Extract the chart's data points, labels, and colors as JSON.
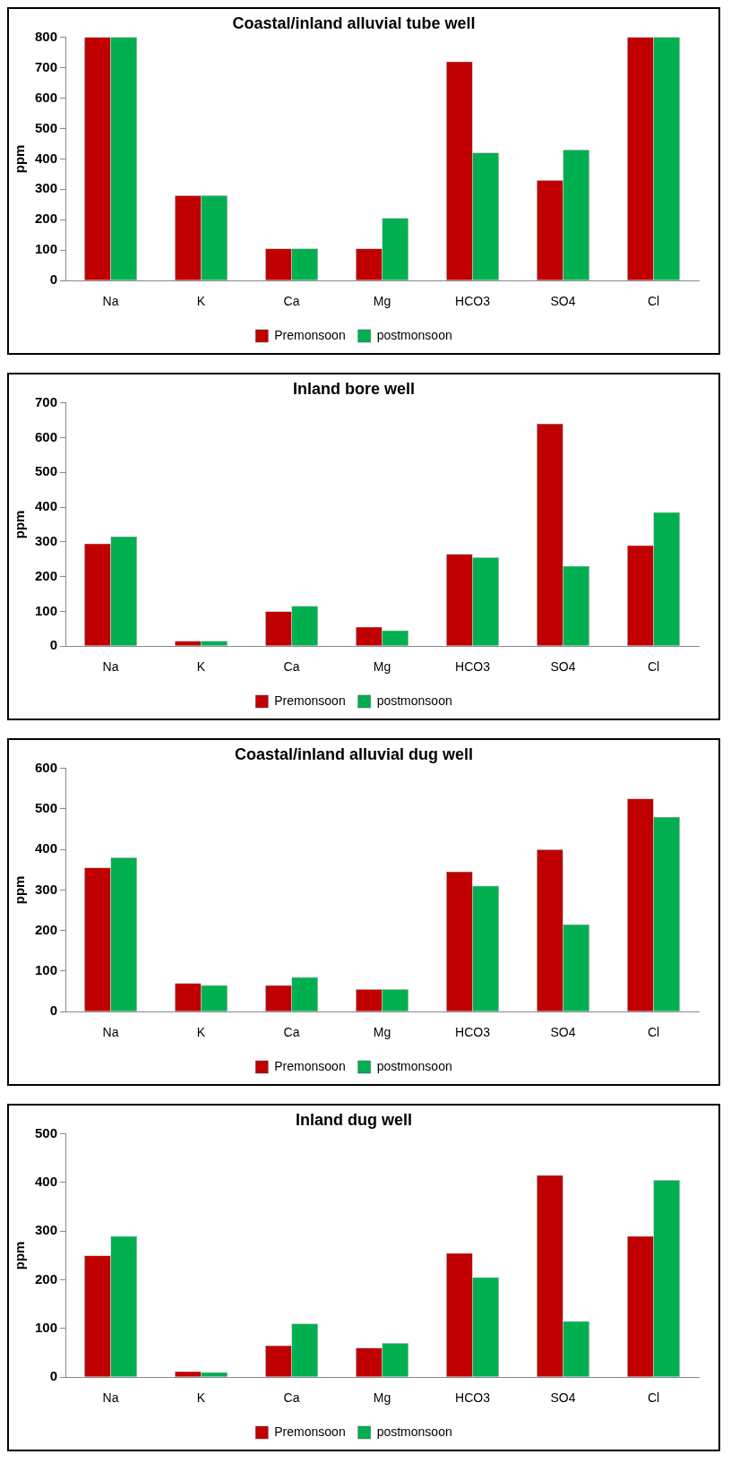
{
  "chart_data": [
    {
      "type": "bar",
      "title": "Coastal/inland alluvial tube well",
      "ylabel": "ppm",
      "categories": [
        "Na",
        "K",
        "Ca",
        "Mg",
        "HCO3",
        "SO4",
        "Cl"
      ],
      "ylim": [
        0,
        800
      ],
      "yticks": [
        0,
        100,
        200,
        300,
        400,
        500,
        600,
        700,
        800
      ],
      "legend": "bottom",
      "grid": false,
      "series": [
        {
          "name": "Premonsoon",
          "color": "#c00000",
          "values": [
            800,
            280,
            105,
            105,
            720,
            330,
            800
          ]
        },
        {
          "name": "postmonsoon",
          "color": "#00b050",
          "values": [
            800,
            280,
            105,
            205,
            420,
            430,
            800
          ]
        }
      ]
    },
    {
      "type": "bar",
      "title": "Inland bore well",
      "ylabel": "ppm",
      "categories": [
        "Na",
        "K",
        "Ca",
        "Mg",
        "HCO3",
        "SO4",
        "Cl"
      ],
      "ylim": [
        0,
        700
      ],
      "yticks": [
        0,
        100,
        200,
        300,
        400,
        500,
        600,
        700
      ],
      "legend": "bottom",
      "grid": false,
      "series": [
        {
          "name": "Premonsoon",
          "color": "#c00000",
          "values": [
            295,
            15,
            100,
            55,
            265,
            640,
            290
          ]
        },
        {
          "name": "postmonsoon",
          "color": "#00b050",
          "values": [
            315,
            15,
            115,
            45,
            255,
            230,
            385
          ]
        }
      ]
    },
    {
      "type": "bar",
      "title": "Coastal/inland alluvial dug well",
      "ylabel": "ppm",
      "categories": [
        "Na",
        "K",
        "Ca",
        "Mg",
        "HCO3",
        "SO4",
        "Cl"
      ],
      "ylim": [
        0,
        600
      ],
      "yticks": [
        0,
        100,
        200,
        300,
        400,
        500,
        600
      ],
      "legend": "bottom",
      "grid": false,
      "series": [
        {
          "name": "Premonsoon",
          "color": "#c00000",
          "values": [
            355,
            70,
            65,
            55,
            345,
            400,
            525
          ]
        },
        {
          "name": "postmonsoon",
          "color": "#00b050",
          "values": [
            380,
            65,
            85,
            55,
            310,
            215,
            480
          ]
        }
      ]
    },
    {
      "type": "bar",
      "title": "Inland dug well",
      "ylabel": "ppm",
      "categories": [
        "Na",
        "K",
        "Ca",
        "Mg",
        "HCO3",
        "SO4",
        "Cl"
      ],
      "ylim": [
        0,
        500
      ],
      "yticks": [
        0,
        100,
        200,
        300,
        400,
        500
      ],
      "legend": "bottom",
      "grid": false,
      "series": [
        {
          "name": "Premonsoon",
          "color": "#c00000",
          "values": [
            250,
            12,
            65,
            60,
            255,
            415,
            290
          ]
        },
        {
          "name": "postmonsoon",
          "color": "#00b050",
          "values": [
            290,
            10,
            110,
            70,
            205,
            115,
            405
          ]
        }
      ]
    }
  ]
}
